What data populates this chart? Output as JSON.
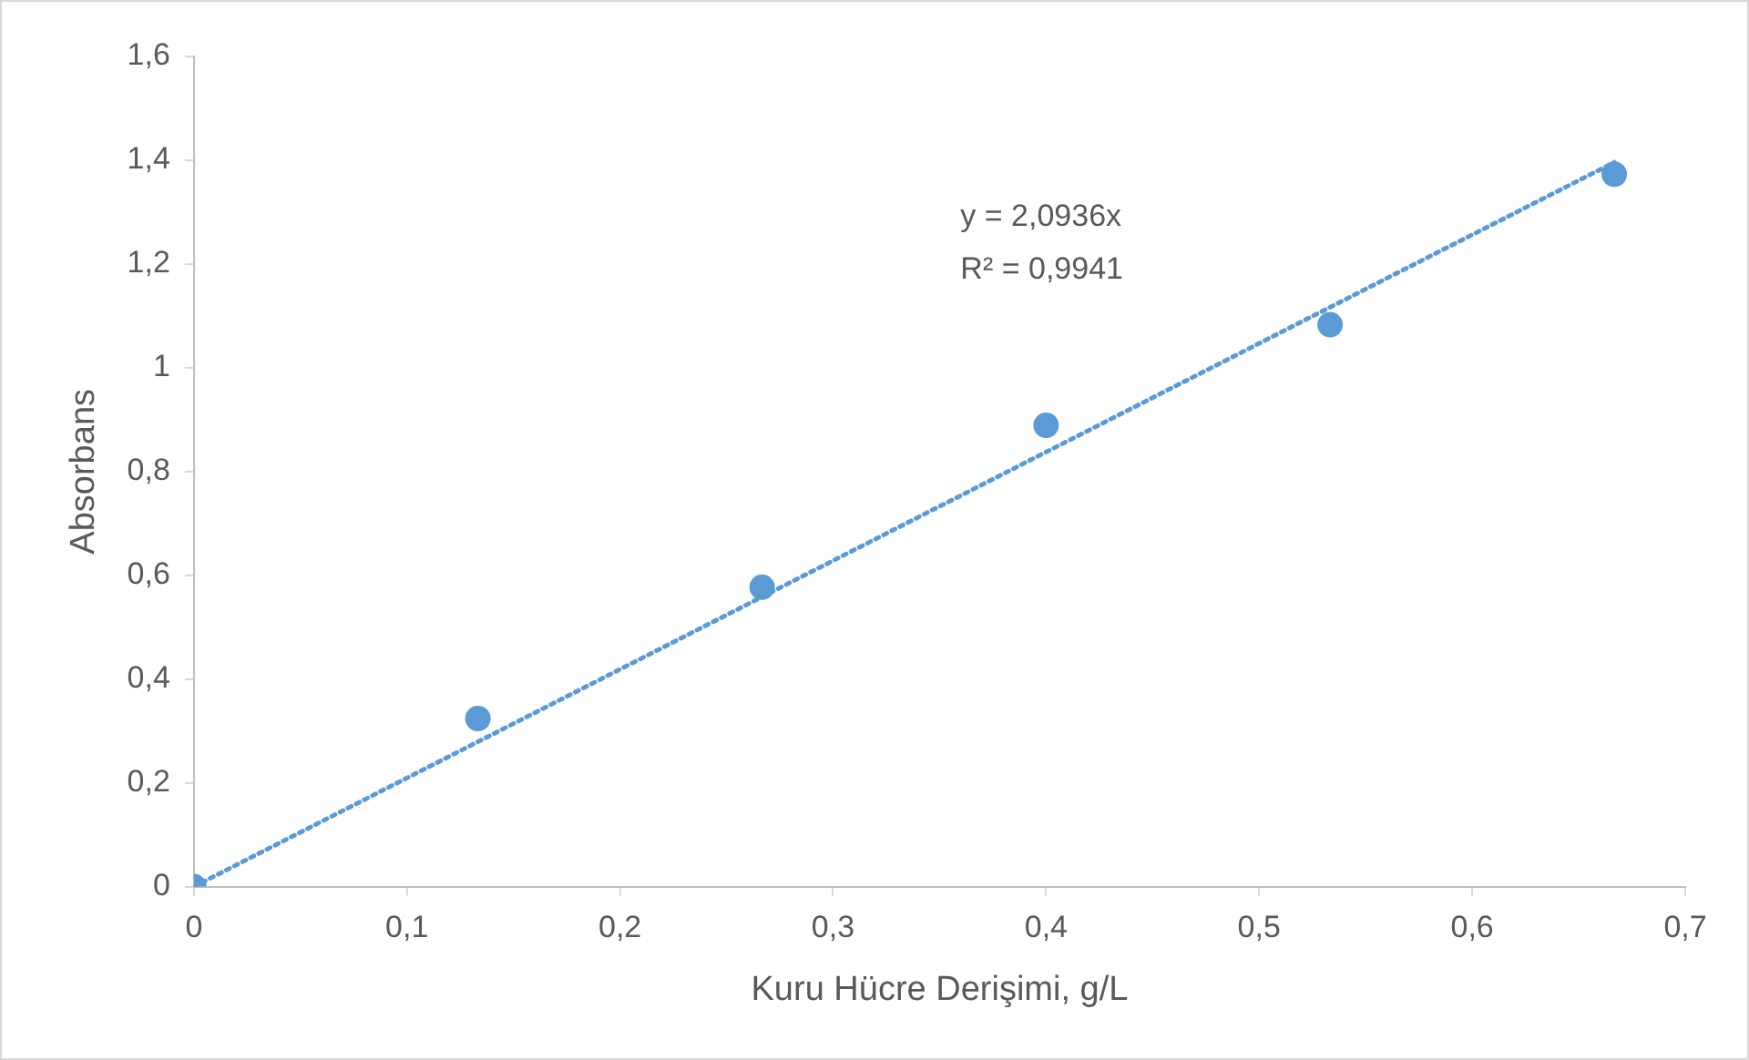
{
  "chart_data": {
    "type": "scatter",
    "xlabel": "Kuru Hücre Derişimi, g/L",
    "ylabel": "Absorbans",
    "x": [
      0,
      0.1333,
      0.2667,
      0.4,
      0.5333,
      0.6667
    ],
    "series": [
      {
        "type": "scatter",
        "color": "#5b9bd5",
        "marker": "circle",
        "values": [
          0,
          0.324,
          0.577,
          0.889,
          1.083,
          1.373
        ]
      },
      {
        "type": "line",
        "color": "#5b9bd5",
        "x": [
          0,
          0.6667
        ],
        "values": [
          0,
          1.396
        ],
        "line_style": "dotted",
        "marker": "none"
      }
    ],
    "xlim": [
      0,
      0.7
    ],
    "ylim": [
      0,
      1.6
    ],
    "xticks": [
      0,
      {
        "value": 0.1,
        "label": "0,1"
      },
      {
        "value": 0.2,
        "label": "0,2"
      },
      {
        "value": 0.3,
        "label": "0,3"
      },
      {
        "value": 0.4,
        "label": "0,4"
      },
      {
        "value": 0.5,
        "label": "0,5"
      },
      {
        "value": 0.6,
        "label": "0,6"
      },
      {
        "value": 0.7,
        "label": "0,7"
      }
    ],
    "yticks": [
      0,
      {
        "value": 0.2,
        "label": "0,2"
      },
      {
        "value": 0.4,
        "label": "0,4"
      },
      {
        "value": 0.6,
        "label": "0,6"
      },
      {
        "value": 0.8,
        "label": "0,8"
      },
      1,
      {
        "value": 1.2,
        "label": "1,2"
      },
      {
        "value": 1.4,
        "label": "1,4"
      },
      {
        "value": 1.6,
        "label": "1,6"
      }
    ],
    "grid": false,
    "legend": false,
    "annotations": [
      "y = 2,0936x",
      "R² = 0,9941"
    ]
  }
}
